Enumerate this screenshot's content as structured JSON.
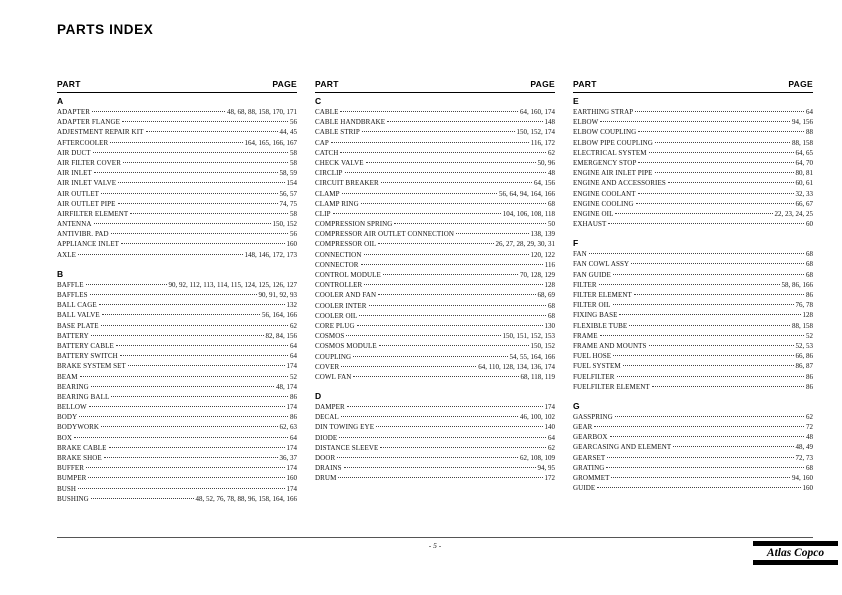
{
  "page": {
    "title": "PARTS INDEX",
    "page_number": "- 5 -",
    "logo_text": "Atlas Copco"
  },
  "column_header": {
    "part": "PART",
    "page": "PAGE"
  },
  "columns": [
    {
      "sections": [
        {
          "letter": "A",
          "entries": [
            {
              "name": "ADAPTER",
              "pages": "48, 68, 88, 158, 170, 171"
            },
            {
              "name": "ADAPTER FLANGE",
              "pages": "56"
            },
            {
              "name": "ADJESTMENT REPAIR KIT",
              "pages": "44, 45"
            },
            {
              "name": "AFTERCOOLER",
              "pages": "164, 165, 166, 167"
            },
            {
              "name": "AIR DUCT",
              "pages": "58"
            },
            {
              "name": "AIR FILTER COVER",
              "pages": "58"
            },
            {
              "name": "AIR INLET",
              "pages": "58, 59"
            },
            {
              "name": "AIR INLET VALVE",
              "pages": "154"
            },
            {
              "name": "AIR OUTLET",
              "pages": "56, 57"
            },
            {
              "name": "AIR OUTLET PIPE",
              "pages": "74, 75"
            },
            {
              "name": "AIRFILTER ELEMENT",
              "pages": "58"
            },
            {
              "name": "ANTENNA",
              "pages": "150, 152"
            },
            {
              "name": "ANTIVIBR. PAD",
              "pages": "56"
            },
            {
              "name": "APPLIANCE INLET",
              "pages": "160"
            },
            {
              "name": "AXLE",
              "pages": "148, 146, 172, 173"
            }
          ]
        },
        {
          "letter": "B",
          "entries": [
            {
              "name": "BAFFLE",
              "pages": "90, 92, 112, 113, 114, 115, 124, 125, 126, 127"
            },
            {
              "name": "BAFFLES",
              "pages": "90, 91, 92, 93"
            },
            {
              "name": "BALL CAGE",
              "pages": "132"
            },
            {
              "name": "BALL VALVE",
              "pages": "56, 164, 166"
            },
            {
              "name": "BASE PLATE",
              "pages": "62"
            },
            {
              "name": "BATTERY",
              "pages": "82, 84, 156"
            },
            {
              "name": "BATTERY CABLE",
              "pages": "64"
            },
            {
              "name": "BATTERY SWITCH",
              "pages": "64"
            },
            {
              "name": "BRAKE SYSTEM SET",
              "pages": "174"
            },
            {
              "name": "BEAM",
              "pages": "52"
            },
            {
              "name": "BEARING",
              "pages": "48, 174"
            },
            {
              "name": "BEARING BALL",
              "pages": "86"
            },
            {
              "name": "BELLOW",
              "pages": "174"
            },
            {
              "name": "BODY",
              "pages": "86"
            },
            {
              "name": "BODYWORK",
              "pages": "62, 63"
            },
            {
              "name": "BOX",
              "pages": "64"
            },
            {
              "name": "BRAKE CABLE",
              "pages": "174"
            },
            {
              "name": "BRAKE SHOE",
              "pages": "36, 37"
            },
            {
              "name": "BUFFER",
              "pages": "174"
            },
            {
              "name": "BUMPER",
              "pages": "160"
            },
            {
              "name": "BUSH",
              "pages": "174"
            },
            {
              "name": "BUSHING",
              "pages": "48, 52, 76, 78, 88, 96, 158, 164, 166"
            }
          ]
        }
      ]
    },
    {
      "sections": [
        {
          "letter": "C",
          "entries": [
            {
              "name": "CABLE",
              "pages": "64, 160, 174"
            },
            {
              "name": "CABLE HANDBRAKE",
              "pages": "148"
            },
            {
              "name": "CABLE STRIP",
              "pages": "150, 152, 174"
            },
            {
              "name": "CAP",
              "pages": "116, 172"
            },
            {
              "name": "CATCH",
              "pages": "62"
            },
            {
              "name": "CHECK VALVE",
              "pages": "50, 96"
            },
            {
              "name": "CIRCLIP",
              "pages": "48"
            },
            {
              "name": "CIRCUIT BREAKER",
              "pages": "64, 156"
            },
            {
              "name": "CLAMP",
              "pages": "56, 64, 94, 164, 166"
            },
            {
              "name": "CLAMP RING",
              "pages": "68"
            },
            {
              "name": "CLIP",
              "pages": "104, 106, 108, 118"
            },
            {
              "name": "COMPRESSION SPRING",
              "pages": "50"
            },
            {
              "name": "COMPRESSOR AIR OUTLET CONNECTION",
              "pages": "138, 139"
            },
            {
              "name": "COMPRESSOR OIL",
              "pages": "26, 27, 28, 29, 30, 31"
            },
            {
              "name": "CONNECTION",
              "pages": "120, 122"
            },
            {
              "name": "CONNECTOR",
              "pages": "116"
            },
            {
              "name": "CONTROL MODULE",
              "pages": "70, 128, 129"
            },
            {
              "name": "CONTROLLER",
              "pages": "128"
            },
            {
              "name": "COOLER AND FAN",
              "pages": "68, 69"
            },
            {
              "name": "COOLER INTER",
              "pages": "68"
            },
            {
              "name": "COOLER OIL",
              "pages": "68"
            },
            {
              "name": "CORE PLUG",
              "pages": "130"
            },
            {
              "name": "COSMOS",
              "pages": "150, 151, 152, 153"
            },
            {
              "name": "COSMOS MODULE",
              "pages": "150, 152"
            },
            {
              "name": "COUPLING",
              "pages": "54, 55, 164, 166"
            },
            {
              "name": "COVER",
              "pages": "64, 110, 128, 134, 136, 174"
            },
            {
              "name": "COWL FAN",
              "pages": "68, 118, 119"
            }
          ]
        },
        {
          "letter": "D",
          "entries": [
            {
              "name": "DAMPER",
              "pages": "174"
            },
            {
              "name": "DECAL",
              "pages": "46, 100, 102"
            },
            {
              "name": "DIN TOWING EYE",
              "pages": "140"
            },
            {
              "name": "DIODE",
              "pages": "64"
            },
            {
              "name": "DISTANCE SLEEVE",
              "pages": "62"
            },
            {
              "name": "DOOR",
              "pages": "62, 108, 109"
            },
            {
              "name": "DRAINS",
              "pages": "94, 95"
            },
            {
              "name": "DRUM",
              "pages": "172"
            }
          ]
        }
      ]
    },
    {
      "sections": [
        {
          "letter": "E",
          "entries": [
            {
              "name": "EARTHING STRAP",
              "pages": "64"
            },
            {
              "name": "ELBOW",
              "pages": "94, 156"
            },
            {
              "name": "ELBOW COUPLING",
              "pages": "88"
            },
            {
              "name": "ELBOW PIPE COUPLING",
              "pages": "88, 158"
            },
            {
              "name": "ELECTRICAL SYSTEM",
              "pages": "64, 65"
            },
            {
              "name": "EMERGENCY STOP",
              "pages": "64, 70"
            },
            {
              "name": "ENGINE AIR INLET PIPE",
              "pages": "80, 81"
            },
            {
              "name": "ENGINE AND ACCESSORIES",
              "pages": "60, 61"
            },
            {
              "name": "ENGINE COOLANT",
              "pages": "32, 33"
            },
            {
              "name": "ENGINE COOLING",
              "pages": "66, 67"
            },
            {
              "name": "ENGINE OIL",
              "pages": "22, 23, 24, 25"
            },
            {
              "name": "EXHAUST",
              "pages": "60"
            }
          ]
        },
        {
          "letter": "F",
          "entries": [
            {
              "name": "FAN",
              "pages": "68"
            },
            {
              "name": "FAN COWL ASSY",
              "pages": "68"
            },
            {
              "name": "FAN GUIDE",
              "pages": "68"
            },
            {
              "name": "FILTER",
              "pages": "58, 86, 166"
            },
            {
              "name": "FILTER ELEMENT",
              "pages": "86"
            },
            {
              "name": "FILTER OIL",
              "pages": "76, 78"
            },
            {
              "name": "FIXING BASE",
              "pages": "128"
            },
            {
              "name": "FLEXIBLE TUBE",
              "pages": "88, 158"
            },
            {
              "name": "FRAME",
              "pages": "52"
            },
            {
              "name": "FRAME AND MOUNTS",
              "pages": "52, 53"
            },
            {
              "name": "FUEL HOSE",
              "pages": "66, 86"
            },
            {
              "name": "FUEL SYSTEM",
              "pages": "86, 87"
            },
            {
              "name": "FUELFILTER",
              "pages": "86"
            },
            {
              "name": "FUELFILTER ELEMENT",
              "pages": "86"
            }
          ]
        },
        {
          "letter": "G",
          "entries": [
            {
              "name": "GASSPRING",
              "pages": "62"
            },
            {
              "name": "GEAR",
              "pages": "72"
            },
            {
              "name": "GEARBOX",
              "pages": "48"
            },
            {
              "name": "GEARCASING AND ELEMENT",
              "pages": "48, 49"
            },
            {
              "name": "GEARSET",
              "pages": "72, 73"
            },
            {
              "name": "GRATING",
              "pages": "68"
            },
            {
              "name": "GROMMET",
              "pages": "94, 160"
            },
            {
              "name": "GUIDE",
              "pages": "160"
            }
          ]
        }
      ]
    }
  ]
}
